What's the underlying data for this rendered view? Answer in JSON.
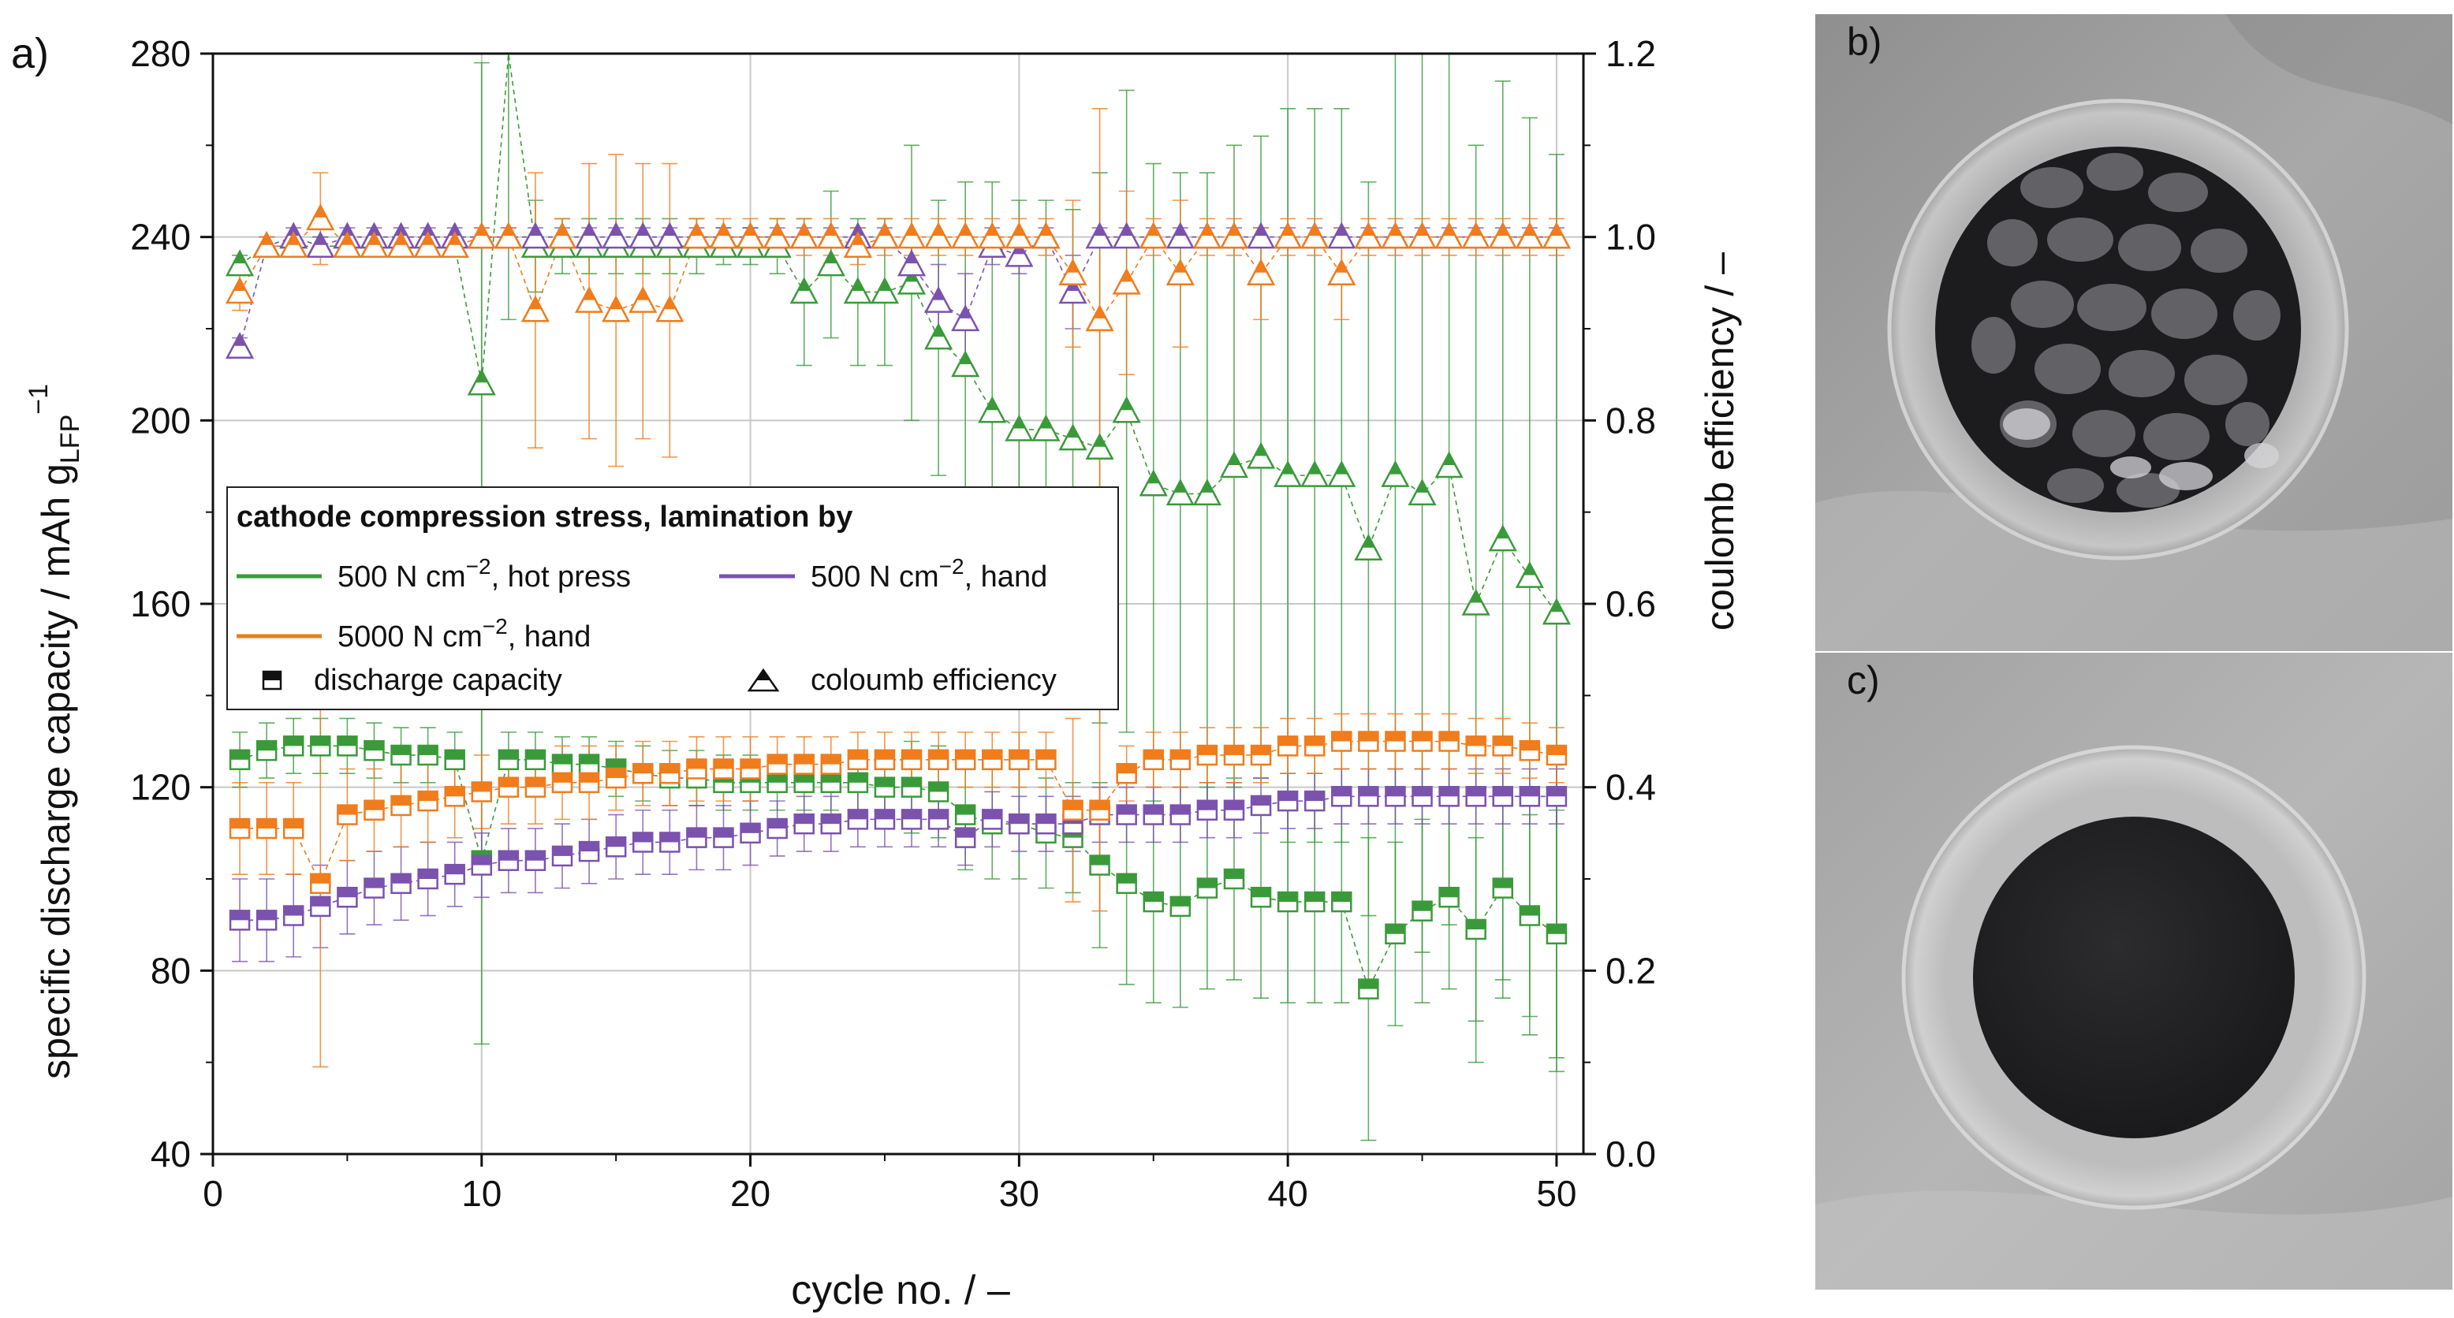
{
  "panel_labels": {
    "a": "a)",
    "b": "b)",
    "c": "c)"
  },
  "chart_data": {
    "type": "scatter",
    "xlabel": "cycle no. / –",
    "ylabel_parts": {
      "main": "specific discharge capacity / mAh g",
      "sub": "LFP",
      "sup": "−1"
    },
    "y2label": "coulomb efficiency / –",
    "xlim": [
      0,
      51
    ],
    "ylim": [
      40,
      280
    ],
    "y2lim": [
      0.0,
      1.2
    ],
    "xticks": [
      0,
      10,
      20,
      30,
      40,
      50
    ],
    "yticks": [
      40,
      80,
      120,
      160,
      200,
      240,
      280
    ],
    "y2ticks": [
      "0.0",
      "0.2",
      "0.4",
      "0.6",
      "0.8",
      "1.0",
      "1.2"
    ],
    "grid": true,
    "legend": {
      "title": "cathode compression stress, lamination by",
      "entries": [
        {
          "base": "500 N cm",
          "sup": "−2",
          "suffix": ", hot press",
          "color": "#3a9a3a"
        },
        {
          "base": "500 N cm",
          "sup": "−2",
          "suffix": ", hand",
          "color": "#7b52ae"
        },
        {
          "base": "5000 N cm",
          "sup": "−2",
          "suffix": ", hand",
          "color": "#f07c1c"
        }
      ],
      "markers": {
        "square": "discharge capacity",
        "triangle": "coloumb efficiency"
      }
    },
    "x": [
      1,
      2,
      3,
      4,
      5,
      6,
      7,
      8,
      9,
      10,
      11,
      12,
      13,
      14,
      15,
      16,
      17,
      18,
      19,
      20,
      21,
      22,
      23,
      24,
      25,
      26,
      27,
      28,
      29,
      30,
      31,
      32,
      33,
      34,
      35,
      36,
      37,
      38,
      39,
      40,
      41,
      42,
      43,
      44,
      45,
      46,
      47,
      48,
      49,
      50
    ],
    "series": [
      {
        "name": "500 N cm−2, hot press",
        "color": "#3a9a3a",
        "capacity": [
          126,
          128,
          129,
          129,
          129,
          128,
          127,
          127,
          126,
          104,
          126,
          126,
          125,
          125,
          124,
          123,
          122,
          122,
          121,
          121,
          121,
          121,
          121,
          121,
          120,
          120,
          119,
          114,
          112,
          112,
          110,
          109,
          103,
          99,
          95,
          94,
          98,
          100,
          96,
          95,
          95,
          95,
          76,
          88,
          93,
          96,
          89,
          98,
          92,
          88
        ],
        "capacity_err": [
          6,
          6,
          6,
          6,
          6,
          6,
          6,
          6,
          6,
          40,
          6,
          6,
          6,
          6,
          6,
          6,
          6,
          6,
          6,
          6,
          6,
          6,
          6,
          6,
          6,
          10,
          10,
          12,
          12,
          12,
          12,
          12,
          18,
          22,
          22,
          22,
          22,
          22,
          22,
          22,
          22,
          22,
          33,
          20,
          20,
          20,
          20,
          20,
          22,
          27
        ],
        "efficiency": [
          0.97,
          0.99,
          0.99,
          0.99,
          0.99,
          0.99,
          0.99,
          0.99,
          0.99,
          0.84,
          1.26,
          0.99,
          0.99,
          0.99,
          0.99,
          0.99,
          0.99,
          0.99,
          0.99,
          0.99,
          0.99,
          0.94,
          0.97,
          0.94,
          0.94,
          0.95,
          0.89,
          0.86,
          0.81,
          0.79,
          0.79,
          0.78,
          0.77,
          0.81,
          0.73,
          0.72,
          0.72,
          0.75,
          0.76,
          0.74,
          0.74,
          0.74,
          0.66,
          0.74,
          0.72,
          0.75,
          0.6,
          0.67,
          0.63,
          0.59
        ],
        "efficiency_err": [
          0.01,
          0.01,
          0.01,
          0.01,
          0.01,
          0.01,
          0.01,
          0.01,
          0.01,
          0.35,
          0.35,
          0.05,
          0.03,
          0.03,
          0.03,
          0.03,
          0.03,
          0.03,
          0.02,
          0.02,
          0.03,
          0.08,
          0.08,
          0.08,
          0.08,
          0.15,
          0.15,
          0.2,
          0.25,
          0.25,
          0.25,
          0.25,
          0.3,
          0.35,
          0.35,
          0.35,
          0.35,
          0.35,
          0.35,
          0.4,
          0.4,
          0.4,
          0.4,
          0.5,
          0.5,
          0.5,
          0.5,
          0.5,
          0.5,
          0.5
        ]
      },
      {
        "name": "500 N cm−2, hand",
        "color": "#7b52ae",
        "capacity": [
          91,
          91,
          92,
          94,
          96,
          98,
          99,
          100,
          101,
          103,
          104,
          104,
          105,
          106,
          107,
          108,
          108,
          109,
          109,
          110,
          111,
          112,
          112,
          113,
          113,
          113,
          113,
          109,
          113,
          112,
          112,
          112,
          114,
          114,
          114,
          114,
          115,
          115,
          116,
          117,
          117,
          118,
          118,
          118,
          118,
          118,
          118,
          118,
          118,
          118
        ],
        "capacity_err": [
          9,
          9,
          9,
          9,
          8,
          8,
          8,
          8,
          7,
          7,
          7,
          7,
          7,
          7,
          7,
          7,
          7,
          7,
          7,
          7,
          6,
          6,
          6,
          6,
          6,
          6,
          6,
          6,
          6,
          6,
          6,
          6,
          6,
          6,
          6,
          6,
          6,
          6,
          6,
          6,
          6,
          6,
          6,
          6,
          6,
          6,
          6,
          6,
          6,
          6
        ],
        "efficiency": [
          0.88,
          0.99,
          1.0,
          0.99,
          1.0,
          1.0,
          1.0,
          1.0,
          1.0,
          1.0,
          1.0,
          1.0,
          1.0,
          1.0,
          1.0,
          1.0,
          1.0,
          1.0,
          1.0,
          1.0,
          1.0,
          1.0,
          1.0,
          1.0,
          1.0,
          0.97,
          0.93,
          0.91,
          0.99,
          0.98,
          1.0,
          0.94,
          1.0,
          1.0,
          1.0,
          1.0,
          1.0,
          1.0,
          1.0,
          1.0,
          1.0,
          1.0,
          1.0,
          1.0,
          1.0,
          1.0,
          1.0,
          1.0,
          1.0,
          1.0
        ],
        "efficiency_err": [
          0.01,
          0.01,
          0.01,
          0.01,
          0.01,
          0.01,
          0.01,
          0.01,
          0.01,
          0.01,
          0.01,
          0.01,
          0.01,
          0.01,
          0.01,
          0.01,
          0.01,
          0.01,
          0.01,
          0.01,
          0.01,
          0.01,
          0.01,
          0.01,
          0.01,
          0.03,
          0.04,
          0.05,
          0.02,
          0.02,
          0.01,
          0.04,
          0.01,
          0.01,
          0.01,
          0.01,
          0.01,
          0.01,
          0.01,
          0.01,
          0.01,
          0.01,
          0.01,
          0.01,
          0.01,
          0.01,
          0.01,
          0.01,
          0.01,
          0.01
        ]
      },
      {
        "name": "5000 N cm−2, hand",
        "color": "#f07c1c",
        "capacity": [
          111,
          111,
          111,
          99,
          114,
          115,
          116,
          117,
          118,
          119,
          120,
          120,
          121,
          121,
          122,
          123,
          123,
          124,
          124,
          124,
          125,
          125,
          125,
          126,
          126,
          126,
          126,
          126,
          126,
          126,
          126,
          115,
          115,
          123,
          126,
          126,
          127,
          127,
          127,
          129,
          129,
          130,
          130,
          130,
          130,
          130,
          129,
          129,
          128,
          127
        ],
        "capacity_err": [
          10,
          10,
          10,
          40,
          10,
          9,
          9,
          9,
          9,
          8,
          8,
          8,
          8,
          8,
          7,
          7,
          7,
          7,
          7,
          7,
          6,
          6,
          6,
          6,
          6,
          6,
          6,
          6,
          6,
          6,
          6,
          20,
          22,
          6,
          6,
          6,
          6,
          6,
          6,
          6,
          6,
          6,
          6,
          6,
          6,
          6,
          6,
          6,
          6,
          6
        ],
        "efficiency": [
          0.94,
          0.99,
          0.99,
          1.02,
          0.99,
          0.99,
          0.99,
          0.99,
          0.99,
          1.0,
          1.0,
          0.92,
          1.0,
          0.93,
          0.92,
          0.93,
          0.92,
          1.0,
          1.0,
          1.0,
          1.0,
          1.0,
          1.0,
          0.99,
          1.0,
          1.0,
          1.0,
          1.0,
          1.0,
          1.0,
          1.0,
          0.96,
          0.91,
          0.95,
          1.0,
          0.96,
          1.0,
          1.0,
          0.96,
          1.0,
          1.0,
          0.96,
          1.0,
          1.0,
          1.0,
          1.0,
          1.0,
          1.0,
          1.0,
          1.0
        ],
        "efficiency_err": [
          0.02,
          0.01,
          0.01,
          0.05,
          0.01,
          0.01,
          0.01,
          0.01,
          0.01,
          0.01,
          0.01,
          0.15,
          0.02,
          0.15,
          0.17,
          0.15,
          0.16,
          0.02,
          0.02,
          0.02,
          0.02,
          0.02,
          0.02,
          0.02,
          0.02,
          0.02,
          0.02,
          0.02,
          0.02,
          0.02,
          0.02,
          0.08,
          0.23,
          0.1,
          0.02,
          0.08,
          0.02,
          0.02,
          0.05,
          0.02,
          0.02,
          0.05,
          0.02,
          0.02,
          0.02,
          0.02,
          0.02,
          0.02,
          0.02,
          0.02
        ]
      }
    ]
  }
}
